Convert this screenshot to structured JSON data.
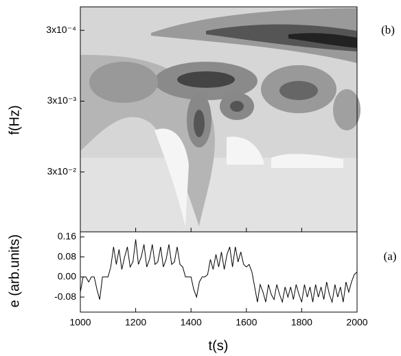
{
  "chart_data": [
    {
      "type": "contour",
      "ylabel": "f(Hz)",
      "panel_label": "(b)",
      "log_y": true,
      "y_inverted": true,
      "ylim": [
        0.00014,
        0.21
      ],
      "yticks": [
        {
          "value": 0.0003,
          "label": "3x10⁻⁴"
        },
        {
          "value": 0.003,
          "label": "3x10⁻³"
        },
        {
          "value": 0.03,
          "label": "3x10⁻²"
        }
      ]
    },
    {
      "type": "line",
      "xlabel": "t(s)",
      "ylabel": "e (arb.units)",
      "panel_label": "(a)",
      "color": "#000000",
      "xlim": [
        1000,
        2000
      ],
      "xticks": [
        1000,
        1200,
        1400,
        1600,
        1800,
        2000
      ],
      "ylim": [
        -0.14,
        0.18
      ],
      "yticks": [
        0.16,
        0.08,
        {
          "value": 0,
          "label": "0.00"
        },
        -0.08
      ],
      "x": [
        1000,
        1010,
        1020,
        1030,
        1040,
        1050,
        1060,
        1070,
        1080,
        1090,
        1100,
        1110,
        1120,
        1130,
        1140,
        1150,
        1160,
        1170,
        1180,
        1190,
        1200,
        1210,
        1220,
        1230,
        1240,
        1250,
        1260,
        1270,
        1280,
        1290,
        1300,
        1310,
        1320,
        1330,
        1340,
        1350,
        1360,
        1370,
        1380,
        1390,
        1400,
        1410,
        1420,
        1430,
        1440,
        1450,
        1460,
        1470,
        1480,
        1490,
        1500,
        1510,
        1520,
        1530,
        1540,
        1550,
        1560,
        1570,
        1580,
        1590,
        1600,
        1610,
        1620,
        1630,
        1640,
        1650,
        1660,
        1670,
        1680,
        1690,
        1700,
        1710,
        1720,
        1730,
        1740,
        1750,
        1760,
        1770,
        1780,
        1790,
        1800,
        1810,
        1820,
        1830,
        1840,
        1850,
        1860,
        1870,
        1880,
        1890,
        1900,
        1910,
        1920,
        1930,
        1940,
        1950,
        1960,
        1970,
        1980,
        1990,
        2000
      ],
      "values": [
        -0.06,
        0.0,
        0.0,
        -0.02,
        0.0,
        0.0,
        -0.05,
        -0.09,
        0.0,
        0.0,
        0.0,
        0.04,
        0.12,
        0.05,
        0.11,
        0.03,
        0.08,
        0.12,
        0.04,
        0.06,
        0.15,
        0.05,
        0.08,
        0.13,
        0.04,
        0.07,
        0.13,
        0.05,
        0.06,
        0.12,
        0.04,
        0.07,
        0.13,
        0.05,
        0.06,
        0.12,
        0.05,
        0.04,
        0.0,
        0.0,
        0.0,
        -0.05,
        -0.08,
        -0.02,
        0.0,
        0.0,
        0.01,
        0.07,
        0.03,
        0.09,
        0.04,
        0.1,
        0.03,
        0.09,
        0.12,
        0.04,
        0.12,
        0.06,
        0.1,
        0.05,
        0.04,
        0.05,
        0.02,
        -0.04,
        -0.1,
        -0.03,
        -0.06,
        -0.1,
        -0.03,
        -0.07,
        -0.09,
        -0.03,
        -0.07,
        -0.1,
        -0.04,
        -0.08,
        -0.04,
        -0.09,
        -0.03,
        -0.07,
        -0.1,
        -0.03,
        -0.08,
        -0.04,
        -0.1,
        -0.03,
        -0.08,
        -0.04,
        -0.09,
        -0.02,
        -0.07,
        -0.1,
        -0.03,
        -0.08,
        -0.04,
        -0.1,
        -0.02,
        -0.06,
        -0.02,
        0.01,
        0.02
      ]
    }
  ]
}
